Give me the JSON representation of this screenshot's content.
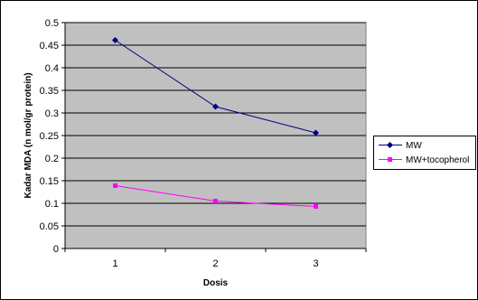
{
  "chart_data": {
    "type": "line",
    "title": "",
    "xlabel": "Dosis",
    "ylabel": "Kadar MDA (n mol/gr protein)",
    "categories": [
      "1",
      "2",
      "3"
    ],
    "series": [
      {
        "name": "MW",
        "values": [
          0.461,
          0.314,
          0.256
        ],
        "color": "#000080",
        "marker": "diamond"
      },
      {
        "name": "MW+tocopherol",
        "values": [
          0.139,
          0.105,
          0.093
        ],
        "color": "#ff00ff",
        "marker": "square"
      }
    ],
    "ylim": [
      0,
      0.5
    ],
    "yticks": [
      "0",
      "0.05",
      "0.1",
      "0.15",
      "0.2",
      "0.25",
      "0.3",
      "0.35",
      "0.4",
      "0.45",
      "0.5"
    ],
    "plot_background": "#c0c0c0",
    "grid": true,
    "legend_position": "right"
  }
}
